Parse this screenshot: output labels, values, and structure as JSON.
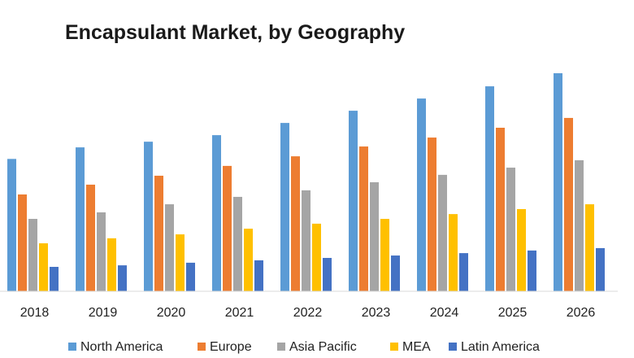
{
  "chart_data": {
    "type": "bar",
    "title": "Encapsulant Market, by Geography",
    "xlabel": "",
    "ylabel": "",
    "categories": [
      "2018",
      "2019",
      "2020",
      "2021",
      "2022",
      "2023",
      "2024",
      "2025",
      "2026"
    ],
    "ylim": [
      0,
      100
    ],
    "grid": false,
    "legend_position": "bottom",
    "series": [
      {
        "name": "North America",
        "color": "#5b9bd5",
        "values": [
          60.7,
          66.0,
          68.6,
          71.6,
          77.2,
          82.8,
          88.4,
          94.0,
          100.0
        ]
      },
      {
        "name": "Europe",
        "color": "#ed7d31",
        "values": [
          44.4,
          48.9,
          53.0,
          57.5,
          61.9,
          66.4,
          70.5,
          75.0,
          79.5
        ]
      },
      {
        "name": "Asia Pacific",
        "color": "#a5a5a5",
        "values": [
          33.2,
          36.2,
          39.9,
          43.3,
          46.3,
          50.0,
          53.4,
          56.7,
          60.1
        ]
      },
      {
        "name": "MEA",
        "color": "#ffc000",
        "values": [
          22.0,
          24.3,
          26.1,
          28.7,
          31.0,
          33.2,
          35.4,
          37.7,
          39.9
        ]
      },
      {
        "name": "Latin America",
        "color": "#4472c4",
        "values": [
          11.2,
          11.9,
          13.1,
          14.2,
          15.3,
          16.4,
          17.5,
          18.7,
          19.8
        ]
      }
    ]
  }
}
